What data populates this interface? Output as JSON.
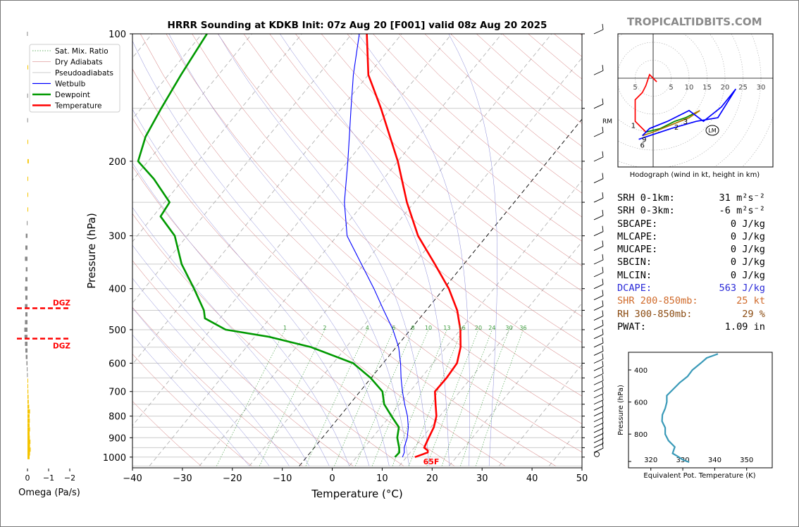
{
  "title": "HRRR Sounding at KDKB Init: 07z Aug 20 [F001] valid 08z Aug 20 2025",
  "watermark": "TROPICALTIDBITS.COM",
  "colors": {
    "temperature": "#ff0000",
    "dewpoint": "#009900",
    "wetbulb": "#0000ff",
    "dry": "#d07070",
    "moist": "#8a8ad8",
    "mix": "#3a9a3a",
    "dgz": "#ff0000",
    "omega": "#f5c400",
    "omega_neg": "#888888",
    "theta": "#3a9ab8"
  },
  "chart_data": [
    {
      "type": "line",
      "name": "skew-t",
      "xlabel": "Temperature (°C)",
      "ylabel": "Pressure (hPa)",
      "xlim": [
        -40,
        50
      ],
      "ylim": [
        1050,
        100
      ],
      "y_scale": "log",
      "x_ticks": [
        "−40",
        "−30",
        "−20",
        "−10",
        "0",
        "10",
        "20",
        "30",
        "40",
        "50"
      ],
      "y_ticks": [
        "100",
        "200",
        "300",
        "400",
        "500",
        "600",
        "700",
        "800",
        "900",
        "1000"
      ],
      "legend": [
        "Sat. Mix. Ratio",
        "Dry Adiabats",
        "Pseudoadiabats",
        "Wetbulb",
        "Dewpoint",
        "Temperature"
      ],
      "legend_position": "top-left",
      "surface_label": "65F",
      "mixing_ratio_labels": [
        "1",
        "2",
        "4",
        "6",
        "8",
        "10",
        "13",
        "16",
        "20",
        "24",
        "30",
        "36"
      ],
      "series": [
        {
          "name": "Temperature",
          "points": [
            [
              1000,
              21.7
            ],
            [
              975,
              23.5
            ],
            [
              965,
              23.2
            ],
            [
              950,
              22.0
            ],
            [
              900,
              21.3
            ],
            [
              850,
              20.6
            ],
            [
              800,
              19.3
            ],
            [
              750,
              17.2
            ],
            [
              700,
              15.0
            ],
            [
              650,
              15.1
            ],
            [
              600,
              14.8
            ],
            [
              550,
              12.9
            ],
            [
              500,
              10.0
            ],
            [
              450,
              6.2
            ],
            [
              400,
              1.0
            ],
            [
              350,
              -5.8
            ],
            [
              300,
              -13.8
            ],
            [
              250,
              -21.5
            ],
            [
              200,
              -30.0
            ],
            [
              150,
              -42.0
            ],
            [
              125,
              -50.0
            ],
            [
              100,
              -57.0
            ]
          ]
        },
        {
          "name": "Wetbulb",
          "points": [
            [
              1000,
              19.2
            ],
            [
              975,
              18.8
            ],
            [
              950,
              18.0
            ],
            [
              900,
              17.0
            ],
            [
              850,
              15.5
            ],
            [
              800,
              13.5
            ],
            [
              750,
              11.0
            ],
            [
              700,
              8.5
            ],
            [
              650,
              6.0
            ],
            [
              600,
              3.5
            ],
            [
              550,
              0.5
            ],
            [
              500,
              -3.5
            ],
            [
              450,
              -8.5
            ],
            [
              400,
              -14.0
            ],
            [
              350,
              -20.5
            ],
            [
              300,
              -28.0
            ],
            [
              250,
              -34.0
            ],
            [
              200,
              -40.0
            ],
            [
              150,
              -48.0
            ],
            [
              125,
              -53.0
            ],
            [
              100,
              -58.5
            ]
          ]
        },
        {
          "name": "Dewpoint",
          "points": [
            [
              1000,
              17.7
            ],
            [
              975,
              17.8
            ],
            [
              950,
              17.0
            ],
            [
              900,
              15.0
            ],
            [
              850,
              13.6
            ],
            [
              800,
              10.3
            ],
            [
              750,
              6.9
            ],
            [
              700,
              4.5
            ],
            [
              650,
              -0.1
            ],
            [
              600,
              -6.0
            ],
            [
              550,
              -17.0
            ],
            [
              520,
              -27.0
            ],
            [
              500,
              -37.0
            ],
            [
              470,
              -43.0
            ],
            [
              450,
              -44.5
            ],
            [
              400,
              -50.0
            ],
            [
              350,
              -56.5
            ],
            [
              300,
              -62.5
            ],
            [
              270,
              -68.5
            ],
            [
              250,
              -69.0
            ],
            [
              220,
              -76.0
            ],
            [
              200,
              -82.0
            ],
            [
              175,
              -84.5
            ],
            [
              150,
              -86.0
            ],
            [
              125,
              -87.5
            ],
            [
              100,
              -89.0
            ]
          ]
        }
      ]
    },
    {
      "type": "line",
      "name": "hodograph",
      "xlabel": "Hodograph (wind in kt, height in km)",
      "xlim": [
        -10,
        33
      ],
      "ylim": [
        -19,
        12
      ],
      "ring_labels": [
        "5",
        "5",
        "10",
        "15",
        "20",
        "25",
        "30"
      ],
      "height_labels": [
        "1",
        "2",
        "3",
        "6",
        "9"
      ],
      "marker": "LM",
      "side_label": "RM",
      "series": [
        {
          "name": "0-1km",
          "color": "#ff0000",
          "points": [
            [
              1,
              -1
            ],
            [
              0,
              0
            ],
            [
              -1,
              1
            ],
            [
              -2,
              -2
            ],
            [
              -3,
              -4
            ],
            [
              -5,
              -6
            ],
            [
              -5,
              -9
            ],
            [
              -5,
              -12
            ],
            [
              -3,
              -14
            ],
            [
              -2,
              -15
            ]
          ]
        },
        {
          "name": "1-3km",
          "color": "#008800",
          "points": [
            [
              -2,
              -15
            ],
            [
              2,
              -14
            ],
            [
              6,
              -12
            ],
            [
              9,
              -11
            ],
            [
              11,
              -10
            ]
          ]
        },
        {
          "name": "3-6km",
          "color": "#aa7700",
          "points": [
            [
              11,
              -10
            ],
            [
              13,
              -9
            ],
            [
              10,
              -11
            ],
            [
              5,
              -13
            ],
            [
              0,
              -15
            ],
            [
              -3,
              -16
            ]
          ]
        },
        {
          "name": "6-9km",
          "color": "#0000ff",
          "points": [
            [
              -3,
              -16
            ],
            [
              -1,
              -14
            ],
            [
              4,
              -12
            ],
            [
              10,
              -9
            ],
            [
              14,
              -12
            ],
            [
              19,
              -8
            ],
            [
              23,
              -3
            ],
            [
              18,
              -11
            ],
            [
              12,
              -12
            ],
            [
              5,
              -14
            ],
            [
              -1,
              -16
            ],
            [
              -4,
              -17
            ]
          ]
        }
      ]
    },
    {
      "type": "line",
      "name": "theta-e",
      "xlabel": "Equivalent Pot. Temperature (K)",
      "ylabel": "Pressure (hPa)",
      "xlim": [
        313,
        358
      ],
      "ylim": [
        1010,
        290
      ],
      "x_ticks": [
        "320",
        "330",
        "340",
        "350"
      ],
      "y_ticks": [
        "400",
        "600",
        "800"
      ],
      "points": [
        [
          975,
          332.0
        ],
        [
          960,
          330.0
        ],
        [
          940,
          328.5
        ],
        [
          920,
          326.8
        ],
        [
          880,
          327.5
        ],
        [
          840,
          325.5
        ],
        [
          800,
          324.5
        ],
        [
          760,
          324.5
        ],
        [
          720,
          323.5
        ],
        [
          680,
          323.6
        ],
        [
          640,
          324.5
        ],
        [
          600,
          325.0
        ],
        [
          560,
          325.0
        ],
        [
          520,
          327.0
        ],
        [
          480,
          329.0
        ],
        [
          440,
          331.5
        ],
        [
          400,
          333.0
        ],
        [
          360,
          335.5
        ],
        [
          325,
          337.5
        ],
        [
          300,
          341.0
        ]
      ]
    },
    {
      "type": "bar",
      "name": "omega",
      "xlabel": "Omega (Pa/s)",
      "x_ticks": [
        "0",
        "−1",
        "−2"
      ],
      "dgz_label": "DGZ",
      "dgz_levels": [
        445,
        525
      ],
      "values": [
        [
          1000,
          0.1
        ],
        [
          980,
          0.12
        ],
        [
          960,
          0.15
        ],
        [
          940,
          0.12
        ],
        [
          920,
          0.14
        ],
        [
          900,
          0.11
        ],
        [
          880,
          0.1
        ],
        [
          860,
          0.12
        ],
        [
          840,
          0.1
        ],
        [
          820,
          0.11
        ],
        [
          800,
          0.1
        ],
        [
          780,
          0.12
        ],
        [
          760,
          0.08
        ],
        [
          740,
          0.06
        ],
        [
          720,
          0.05
        ],
        [
          700,
          0.04
        ],
        [
          680,
          0.03
        ],
        [
          660,
          0.02
        ],
        [
          640,
          -0.02
        ],
        [
          620,
          -0.03
        ],
        [
          600,
          -0.05
        ],
        [
          580,
          -0.08
        ],
        [
          560,
          -0.1
        ],
        [
          540,
          -0.12
        ],
        [
          520,
          -0.14
        ],
        [
          500,
          -0.15
        ],
        [
          480,
          -0.12
        ],
        [
          460,
          -0.1
        ],
        [
          440,
          -0.12
        ],
        [
          420,
          -0.1
        ],
        [
          400,
          -0.12
        ],
        [
          380,
          -0.1
        ],
        [
          360,
          -0.08
        ],
        [
          340,
          -0.12
        ],
        [
          320,
          -0.1
        ],
        [
          300,
          -0.08
        ],
        [
          280,
          -0.03
        ],
        [
          260,
          0.02
        ],
        [
          240,
          0.03
        ],
        [
          220,
          0.02
        ],
        [
          200,
          0.06
        ],
        [
          180,
          0.02
        ],
        [
          160,
          -0.01
        ],
        [
          140,
          -0.01
        ],
        [
          120,
          0.0
        ],
        [
          100,
          -0.02
        ]
      ]
    },
    {
      "type": "table",
      "name": "indices",
      "rows": [
        {
          "label": "SRH 0-1km:",
          "value": "31",
          "unit": "m²s⁻²",
          "color": "#000000"
        },
        {
          "label": "SRH 0-3km:",
          "value": "-6",
          "unit": "m²s⁻²",
          "color": "#000000"
        },
        {
          "label": "SBCAPE:",
          "value": "0 J/kg",
          "color": "#000000"
        },
        {
          "label": "MLCAPE:",
          "value": "0 J/kg",
          "color": "#000000"
        },
        {
          "label": "MUCAPE:",
          "value": "0 J/kg",
          "color": "#000000"
        },
        {
          "label": "SBCIN:",
          "value": "0 J/kg",
          "color": "#000000"
        },
        {
          "label": "MLCIN:",
          "value": "0 J/kg",
          "color": "#000000"
        },
        {
          "label": "DCAPE:",
          "value": "563 J/kg",
          "color": "#2a2ad8"
        },
        {
          "label": "SHR 200-850mb:",
          "value": "25 kt",
          "color": "#d06a2a"
        },
        {
          "label": "RH 300-850mb:",
          "value": "29 %",
          "color": "#8a4a10"
        },
        {
          "label": "PWAT:",
          "value": "1.09 in",
          "color": "#000000"
        }
      ]
    }
  ]
}
